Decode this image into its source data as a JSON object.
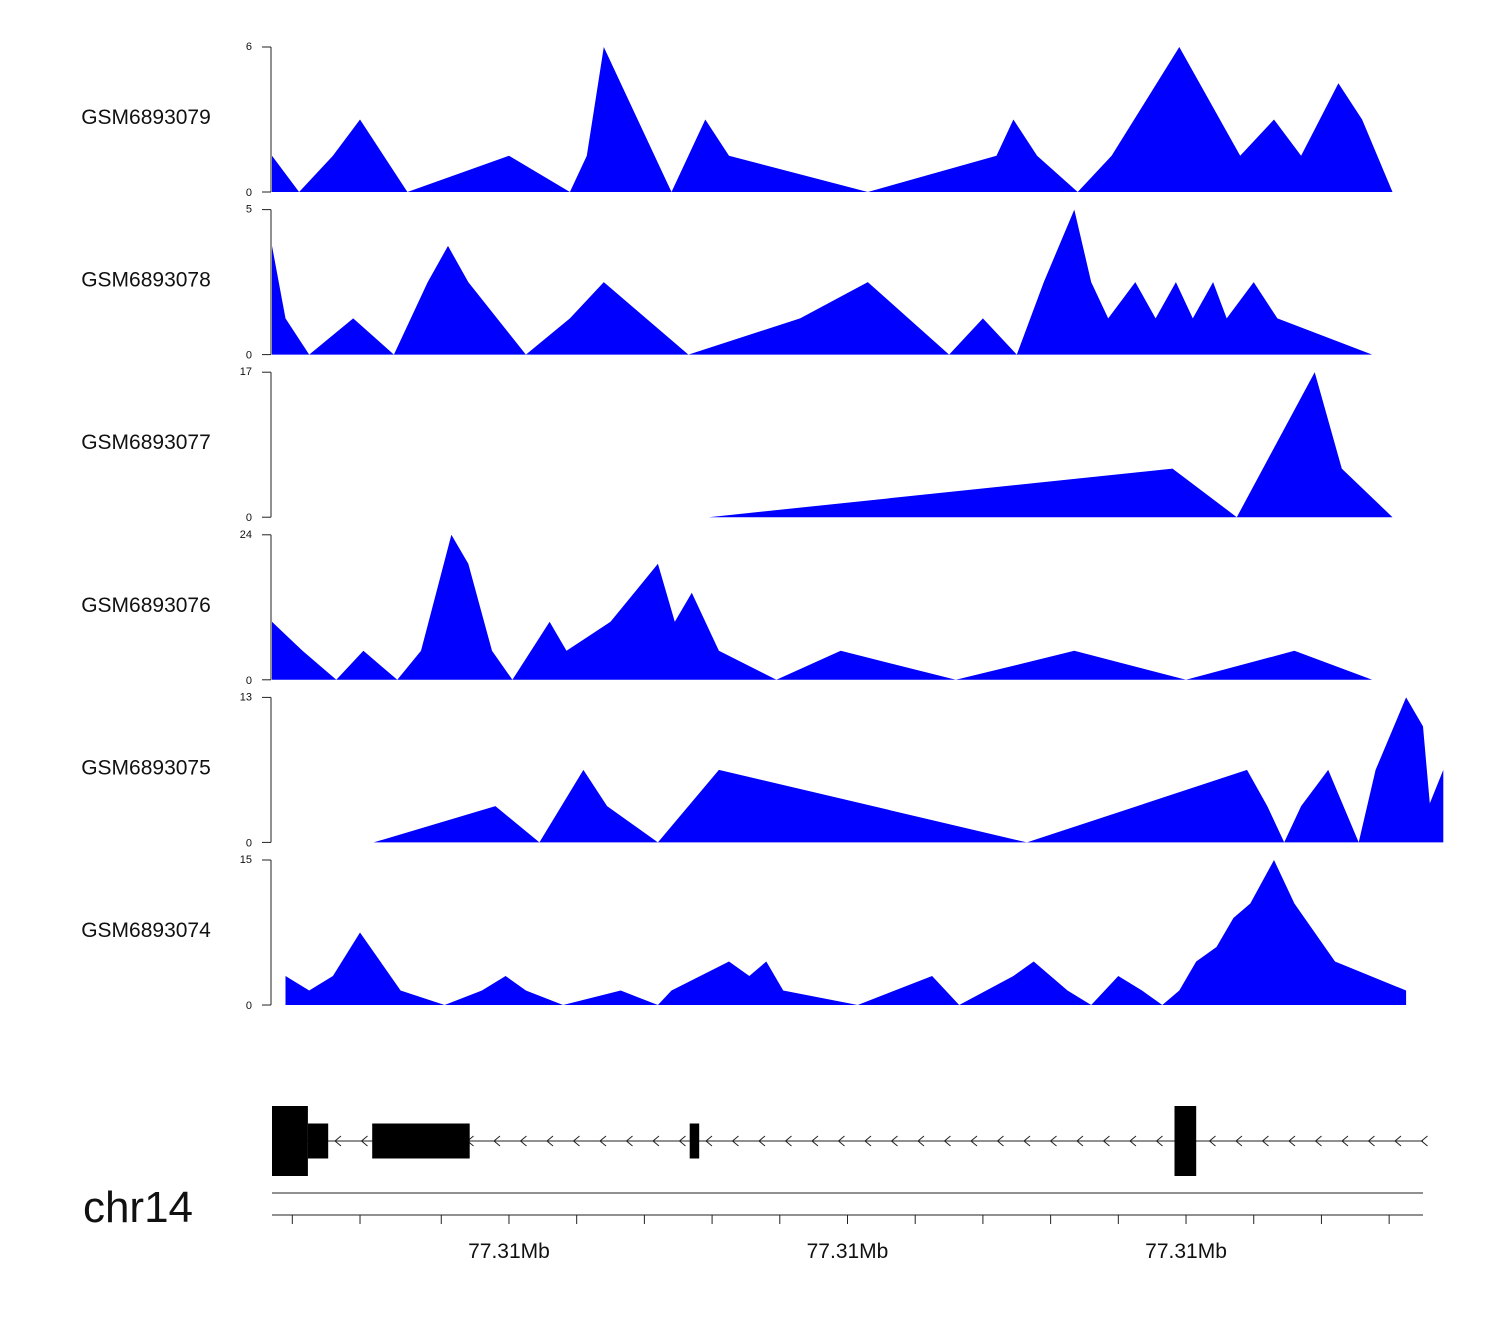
{
  "chart_data": {
    "type": "area",
    "title": "",
    "chromosome": "chr14",
    "x_range_bp": [
      77305000,
      77322000
    ],
    "x_tick_labels": [
      {
        "pos": 77308500,
        "label": "77.31Mb"
      },
      {
        "pos": 77313500,
        "label": "77.31Mb"
      },
      {
        "pos": 77318500,
        "label": "77.31Mb"
      }
    ],
    "x_minor_ticks": [
      77305300,
      77306300,
      77307500,
      77308500,
      77309500,
      77310500,
      77311500,
      77312500,
      77313500,
      77314500,
      77315500,
      77316500,
      77317500,
      77318500,
      77319500,
      77320500,
      77321500
    ],
    "fill_color": "#0000ff",
    "series": [
      {
        "name": "GSM6893079",
        "ylim": [
          0,
          6
        ],
        "points": [
          [
            77305000,
            1.5
          ],
          [
            77305400,
            0
          ],
          [
            77305900,
            1.5
          ],
          [
            77306300,
            3
          ],
          [
            77307000,
            0
          ],
          [
            77308500,
            1.5
          ],
          [
            77309400,
            0
          ],
          [
            77309650,
            1.5
          ],
          [
            77309900,
            6
          ],
          [
            77310900,
            0
          ],
          [
            77311400,
            3
          ],
          [
            77311750,
            1.5
          ],
          [
            77313800,
            0
          ],
          [
            77315700,
            1.5
          ],
          [
            77315950,
            3
          ],
          [
            77316300,
            1.5
          ],
          [
            77316900,
            0
          ],
          [
            77317400,
            1.5
          ],
          [
            77318400,
            6
          ],
          [
            77318700,
            4.5
          ],
          [
            77319300,
            1.5
          ],
          [
            77319800,
            3
          ],
          [
            77320200,
            1.5
          ],
          [
            77320750,
            4.5
          ],
          [
            77321100,
            3
          ],
          [
            77321550,
            0
          ]
        ]
      },
      {
        "name": "GSM6893078",
        "ylim": [
          0,
          5
        ],
        "points": [
          [
            77305000,
            3.75
          ],
          [
            77305200,
            1.25
          ],
          [
            77305550,
            0
          ],
          [
            77306200,
            1.25
          ],
          [
            77306800,
            0
          ],
          [
            77307300,
            2.5
          ],
          [
            77307600,
            3.75
          ],
          [
            77307900,
            2.5
          ],
          [
            77308750,
            0
          ],
          [
            77309400,
            1.25
          ],
          [
            77309900,
            2.5
          ],
          [
            77311150,
            0
          ],
          [
            77312800,
            1.25
          ],
          [
            77313800,
            2.5
          ],
          [
            77315000,
            0
          ],
          [
            77315500,
            1.25
          ],
          [
            77316000,
            0
          ],
          [
            77316400,
            2.5
          ],
          [
            77316850,
            5
          ],
          [
            77317100,
            2.5
          ],
          [
            77317350,
            1.25
          ],
          [
            77317750,
            2.5
          ],
          [
            77318050,
            1.25
          ],
          [
            77318350,
            2.5
          ],
          [
            77318600,
            1.25
          ],
          [
            77318900,
            2.5
          ],
          [
            77319100,
            1.25
          ],
          [
            77319500,
            2.5
          ],
          [
            77319850,
            1.25
          ],
          [
            77321250,
            0
          ]
        ]
      },
      {
        "name": "GSM6893077",
        "ylim": [
          0,
          17
        ],
        "points": [
          [
            77311450,
            0
          ],
          [
            77318300,
            5.7
          ],
          [
            77319250,
            0
          ],
          [
            77320400,
            17
          ],
          [
            77320800,
            5.7
          ],
          [
            77321550,
            0
          ]
        ]
      },
      {
        "name": "GSM6893076",
        "ylim": [
          0,
          24
        ],
        "points": [
          [
            77305000,
            9.6
          ],
          [
            77305450,
            4.8
          ],
          [
            77305950,
            0
          ],
          [
            77306350,
            4.8
          ],
          [
            77306850,
            0
          ],
          [
            77307200,
            4.8
          ],
          [
            77307650,
            24
          ],
          [
            77307900,
            19.2
          ],
          [
            77308250,
            4.8
          ],
          [
            77308550,
            0
          ],
          [
            77309100,
            9.6
          ],
          [
            77309350,
            4.8
          ],
          [
            77310000,
            9.6
          ],
          [
            77310700,
            19.2
          ],
          [
            77310950,
            9.6
          ],
          [
            77311200,
            14.4
          ],
          [
            77311600,
            4.8
          ],
          [
            77312450,
            0
          ],
          [
            77313400,
            4.8
          ],
          [
            77315100,
            0
          ],
          [
            77316850,
            4.8
          ],
          [
            77318500,
            0
          ],
          [
            77320100,
            4.8
          ],
          [
            77321250,
            0
          ]
        ]
      },
      {
        "name": "GSM6893075",
        "ylim": [
          0,
          13
        ],
        "points": [
          [
            77306500,
            0
          ],
          [
            77308300,
            3.25
          ],
          [
            77308950,
            0
          ],
          [
            77309600,
            6.5
          ],
          [
            77309950,
            3.25
          ],
          [
            77310700,
            0
          ],
          [
            77311600,
            6.5
          ],
          [
            77316150,
            0
          ],
          [
            77319400,
            6.5
          ],
          [
            77319700,
            3.25
          ],
          [
            77319950,
            0
          ],
          [
            77320200,
            3.25
          ],
          [
            77320600,
            6.5
          ],
          [
            77321050,
            0
          ],
          [
            77321300,
            6.5
          ],
          [
            77321750,
            13
          ],
          [
            77322000,
            10.4
          ],
          [
            77322100,
            3.5
          ],
          [
            77322300,
            6.5
          ],
          [
            77322300,
            0
          ]
        ]
      },
      {
        "name": "GSM6893074",
        "ylim": [
          0,
          15
        ],
        "points": [
          [
            77305200,
            3
          ],
          [
            77305550,
            1.5
          ],
          [
            77305900,
            3
          ],
          [
            77306300,
            7.5
          ],
          [
            77306900,
            1.5
          ],
          [
            77307550,
            0
          ],
          [
            77308100,
            1.5
          ],
          [
            77308450,
            3
          ],
          [
            77308750,
            1.5
          ],
          [
            77309300,
            0
          ],
          [
            77310150,
            1.5
          ],
          [
            77310700,
            0
          ],
          [
            77310900,
            1.5
          ],
          [
            77311750,
            4.5
          ],
          [
            77312050,
            3
          ],
          [
            77312300,
            4.5
          ],
          [
            77312550,
            1.5
          ],
          [
            77313650,
            0
          ],
          [
            77314750,
            3
          ],
          [
            77315150,
            0
          ],
          [
            77315950,
            3
          ],
          [
            77316250,
            4.5
          ],
          [
            77316750,
            1.5
          ],
          [
            77317100,
            0
          ],
          [
            77317500,
            3
          ],
          [
            77317850,
            1.5
          ],
          [
            77318150,
            0
          ],
          [
            77318400,
            1.5
          ],
          [
            77318650,
            4.5
          ],
          [
            77318950,
            6
          ],
          [
            77319200,
            9
          ],
          [
            77319450,
            10.5
          ],
          [
            77319800,
            15
          ],
          [
            77320100,
            10.5
          ],
          [
            77320700,
            4.5
          ],
          [
            77321750,
            1.5
          ],
          [
            77321750,
            0
          ]
        ]
      }
    ],
    "gene_model": {
      "strand": "-",
      "exons": [
        {
          "start": 77305000,
          "end": 77305530,
          "size": "large"
        },
        {
          "start": 77305530,
          "end": 77305830,
          "size": "medium"
        },
        {
          "start": 77306480,
          "end": 77307920,
          "size": "medium"
        },
        {
          "start": 77311170,
          "end": 77311310,
          "size": "medium"
        },
        {
          "start": 77318330,
          "end": 77318650,
          "size": "large"
        }
      ]
    }
  }
}
